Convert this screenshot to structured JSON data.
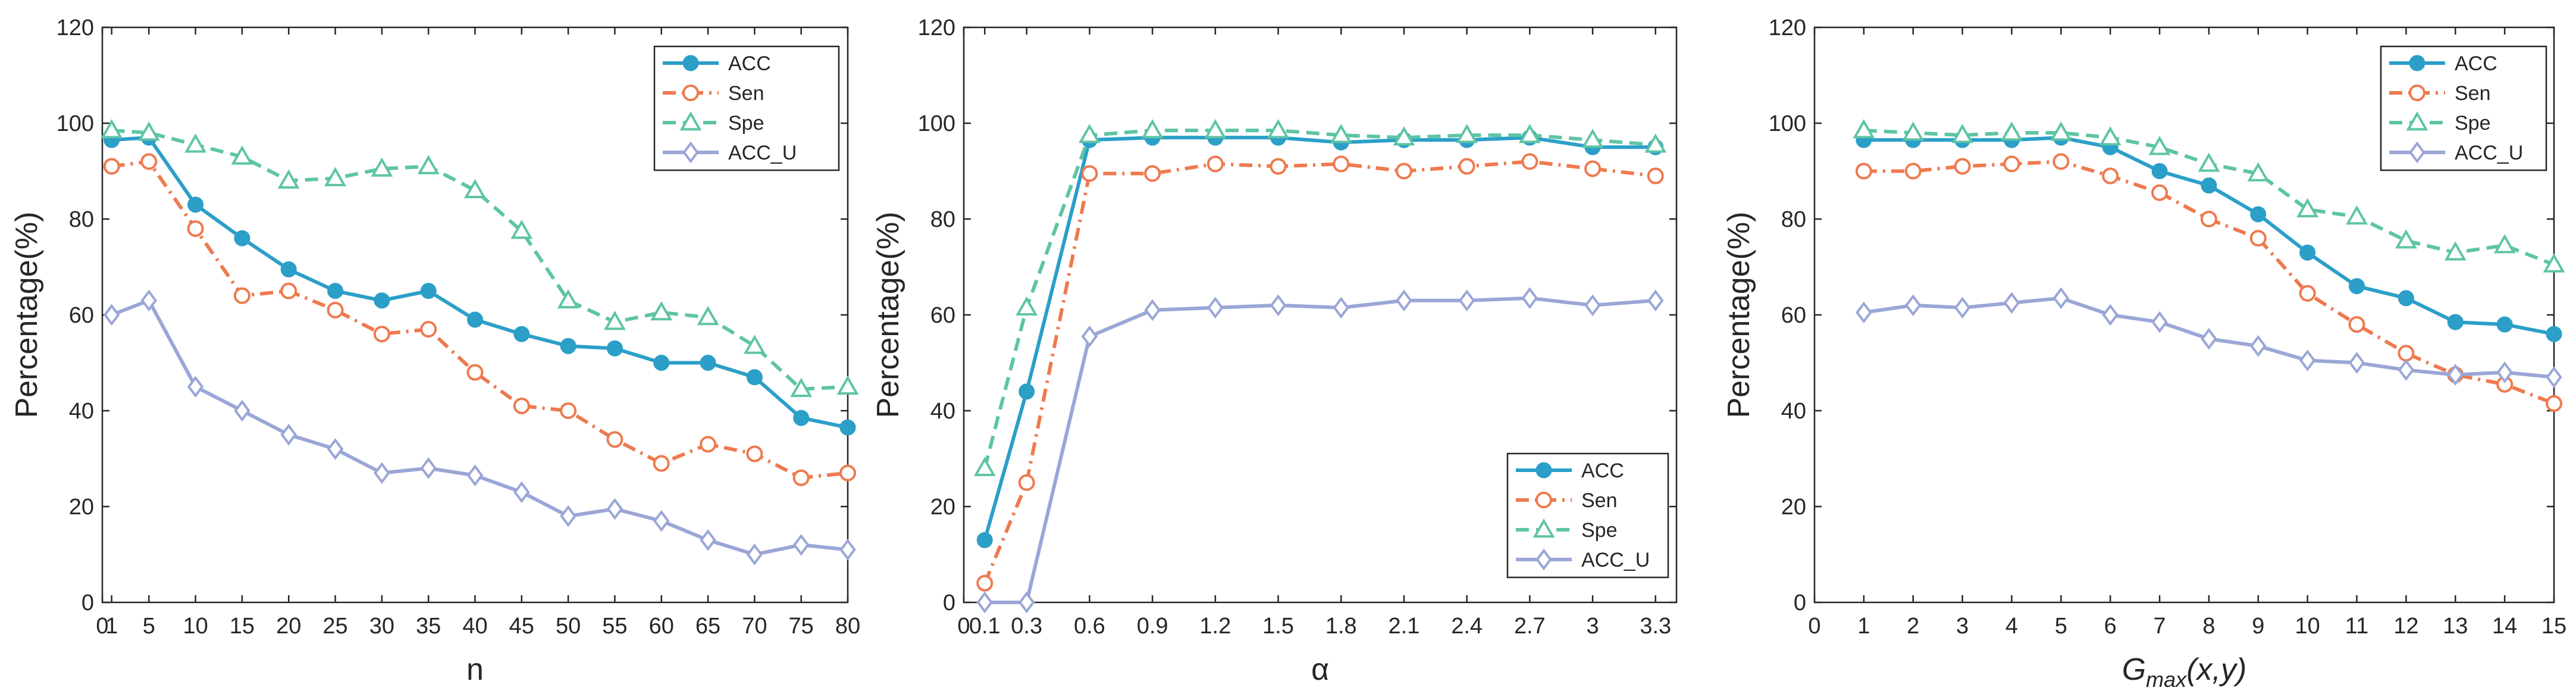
{
  "chart_data": [
    {
      "type": "line",
      "xlabel": "n",
      "ylabel": "Percentage(%)",
      "ylim": [
        0,
        120
      ],
      "yticks": [
        0,
        20,
        40,
        60,
        80,
        100,
        120
      ],
      "xlim": [
        0,
        80
      ],
      "xtick_values": [
        0,
        1,
        5,
        10,
        15,
        20,
        25,
        30,
        35,
        40,
        45,
        50,
        55,
        60,
        65,
        70,
        75,
        80
      ],
      "xtick_labels": [
        "0",
        "1",
        "5",
        "10",
        "15",
        "20",
        "25",
        "30",
        "35",
        "40",
        "45",
        "50",
        "55",
        "60",
        "65",
        "70",
        "75",
        "80"
      ],
      "x": [
        1,
        5,
        10,
        15,
        20,
        25,
        30,
        35,
        40,
        45,
        50,
        55,
        60,
        65,
        70,
        75,
        80
      ],
      "legend_position": "top-right",
      "series": [
        {
          "name": "ACC",
          "values": [
            96.5,
            97,
            83,
            76,
            69.5,
            65,
            63,
            65,
            59,
            56,
            53.5,
            53,
            50,
            50,
            47,
            38.5,
            36.5
          ]
        },
        {
          "name": "Sen",
          "values": [
            91,
            92,
            78,
            64,
            65,
            61,
            56,
            57,
            48,
            41,
            40,
            34,
            29,
            33,
            31,
            26,
            27
          ]
        },
        {
          "name": "Spe",
          "values": [
            98.5,
            98,
            95.5,
            93,
            88,
            88.5,
            90.5,
            91,
            86,
            77.5,
            63,
            58.5,
            60.5,
            59.5,
            53.5,
            44.5,
            45
          ]
        },
        {
          "name": "ACC_U",
          "values": [
            60,
            63,
            45,
            40,
            35,
            32,
            27,
            28,
            26.5,
            23,
            18,
            19.5,
            17,
            13,
            10,
            12,
            11
          ]
        }
      ]
    },
    {
      "type": "line",
      "xlabel": "α",
      "ylabel": "Percentage(%)",
      "ylim": [
        0,
        120
      ],
      "yticks": [
        0,
        20,
        40,
        60,
        80,
        100,
        120
      ],
      "xlim": [
        0,
        3.4
      ],
      "xtick_values": [
        0,
        0.1,
        0.3,
        0.6,
        0.9,
        1.2,
        1.5,
        1.8,
        2.1,
        2.4,
        2.7,
        3,
        3.3
      ],
      "xtick_labels": [
        "0",
        "0.1",
        "0.3",
        "0.6",
        "0.9",
        "1.2",
        "1.5",
        "1.8",
        "2.1",
        "2.4",
        "2.7",
        "3",
        "3.3"
      ],
      "x": [
        0.1,
        0.3,
        0.6,
        0.9,
        1.2,
        1.5,
        1.8,
        2.1,
        2.4,
        2.7,
        3,
        3.3
      ],
      "legend_position": "bottom-right",
      "series": [
        {
          "name": "ACC",
          "values": [
            13,
            44,
            96.5,
            97,
            97,
            97,
            96,
            96.5,
            96.5,
            97,
            95,
            95
          ]
        },
        {
          "name": "Sen",
          "values": [
            4,
            25,
            89.5,
            89.5,
            91.5,
            91,
            91.5,
            90,
            91,
            92,
            90.5,
            89
          ]
        },
        {
          "name": "Spe",
          "values": [
            28,
            61.5,
            97.5,
            98.5,
            98.5,
            98.5,
            97.5,
            97,
            97.5,
            97.5,
            96.5,
            95.5
          ]
        },
        {
          "name": "ACC_U",
          "values": [
            0,
            0,
            55.5,
            61,
            61.5,
            62,
            61.5,
            63,
            63,
            63.5,
            62,
            63
          ]
        }
      ]
    },
    {
      "type": "line",
      "xlabel_main": "G",
      "xlabel_sub": "max",
      "xlabel_rest": "(x,y)",
      "ylabel": "Percentage(%)",
      "ylim": [
        0,
        120
      ],
      "yticks": [
        0,
        20,
        40,
        60,
        80,
        100,
        120
      ],
      "xlim": [
        0,
        15
      ],
      "xtick_values": [
        0,
        1,
        2,
        3,
        4,
        5,
        6,
        7,
        8,
        9,
        10,
        11,
        12,
        13,
        14,
        15
      ],
      "xtick_labels": [
        "0",
        "1",
        "2",
        "3",
        "4",
        "5",
        "6",
        "7",
        "8",
        "9",
        "10",
        "11",
        "12",
        "13",
        "14",
        "15"
      ],
      "x": [
        1,
        2,
        3,
        4,
        5,
        6,
        7,
        8,
        9,
        10,
        11,
        12,
        13,
        14,
        15
      ],
      "legend_position": "top-right",
      "series": [
        {
          "name": "ACC",
          "values": [
            96.5,
            96.5,
            96.5,
            96.5,
            97,
            95,
            90,
            87,
            81,
            73,
            66,
            63.5,
            58.5,
            58,
            56
          ]
        },
        {
          "name": "Sen",
          "values": [
            90,
            90,
            91,
            91.5,
            92,
            89,
            85.5,
            80,
            76,
            64.5,
            58,
            52,
            47.5,
            45.5,
            41.5
          ]
        },
        {
          "name": "Spe",
          "values": [
            98.5,
            98,
            97.5,
            98,
            98,
            97,
            95,
            91.5,
            89.5,
            82,
            80.5,
            75.5,
            73,
            74.5,
            70.5
          ]
        },
        {
          "name": "ACC_U",
          "values": [
            60.5,
            62,
            61.5,
            62.5,
            63.5,
            60,
            58.5,
            55,
            53.5,
            50.5,
            50,
            48.5,
            47.5,
            48,
            47
          ]
        }
      ]
    }
  ],
  "series_style": {
    "ACC": {
      "color": "#2b9fc8",
      "marker": "circle-filled",
      "dash": "solid"
    },
    "Sen": {
      "color": "#ee7a4e",
      "marker": "circle-open",
      "dash": "dashdot"
    },
    "Spe": {
      "color": "#5ec4a5",
      "marker": "triangle-open",
      "dash": "dashed"
    },
    "ACC_U": {
      "color": "#9aa6d6",
      "marker": "diamond-open",
      "dash": "solid"
    }
  }
}
